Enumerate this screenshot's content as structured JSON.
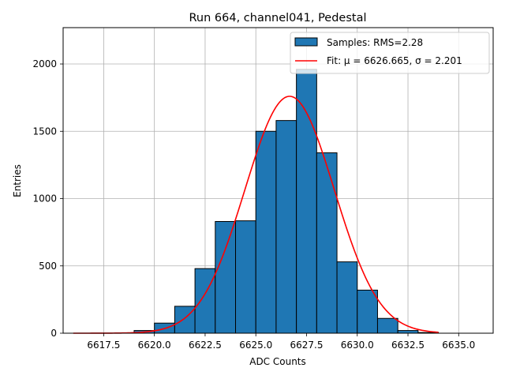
{
  "chart_data": {
    "type": "bar",
    "title": "Run 664, channel041, Pedestal",
    "xlabel": "ADC Counts",
    "ylabel": "Entries",
    "xlim": [
      6615.5,
      6636.7
    ],
    "ylim": [
      0,
      2270
    ],
    "xticks": [
      6617.5,
      6620.0,
      6622.5,
      6625.0,
      6627.5,
      6630.0,
      6632.5,
      6635.0
    ],
    "xtick_labels": [
      "6617.5",
      "6620.0",
      "6622.5",
      "6625.0",
      "6627.5",
      "6630.0",
      "6632.5",
      "6635.0"
    ],
    "yticks": [
      0,
      500,
      1000,
      1500,
      2000
    ],
    "ytick_labels": [
      "0",
      "500",
      "1000",
      "1500",
      "2000"
    ],
    "grid": true,
    "legend_position": "top-right",
    "histogram": {
      "name": "Samples: RMS=2.28",
      "color": "#1f77b4",
      "edge_color": "#000000",
      "bins": [
        {
          "left": 6619,
          "right": 6620,
          "count": 20
        },
        {
          "left": 6620,
          "right": 6621,
          "count": 75
        },
        {
          "left": 6621,
          "right": 6622,
          "count": 200
        },
        {
          "left": 6622,
          "right": 6623,
          "count": 480
        },
        {
          "left": 6623,
          "right": 6624,
          "count": 830
        },
        {
          "left": 6624,
          "right": 6625,
          "count": 835
        },
        {
          "left": 6625,
          "right": 6626,
          "count": 1500
        },
        {
          "left": 6626,
          "right": 6627,
          "count": 1580
        },
        {
          "left": 6627,
          "right": 6628,
          "count": 1960
        },
        {
          "left": 6628,
          "right": 6629,
          "count": 1340
        },
        {
          "left": 6629,
          "right": 6630,
          "count": 530
        },
        {
          "left": 6630,
          "right": 6631,
          "count": 320
        },
        {
          "left": 6631,
          "right": 6632,
          "count": 110
        },
        {
          "left": 6632,
          "right": 6633,
          "count": 20
        },
        {
          "left": 6633,
          "right": 6634,
          "count": 5
        }
      ]
    },
    "fit": {
      "name": "Fit: μ = 6626.665, σ = 2.201",
      "color": "#ff0000",
      "mu": 6626.665,
      "sigma": 2.201,
      "amplitude": 1760,
      "x_range": [
        6616,
        6634
      ]
    }
  }
}
